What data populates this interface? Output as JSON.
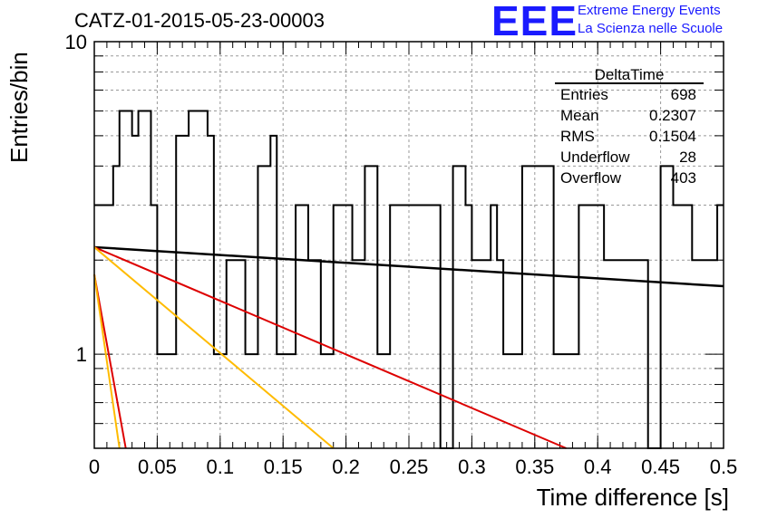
{
  "header": {
    "title": "CATZ-01-2015-05-23-00003",
    "logo_text": "EEE",
    "logo_line1": "Extreme Energy Events",
    "logo_line2": "La Scienza nelle Scuole"
  },
  "stats_box": {
    "name": "DeltaTime",
    "rows": [
      {
        "label": "Entries",
        "value": "698"
      },
      {
        "label": "Mean",
        "value": "0.2307"
      },
      {
        "label": "RMS",
        "value": "0.1504"
      },
      {
        "label": "Underflow",
        "value": "28"
      },
      {
        "label": "Overflow",
        "value": "403"
      }
    ]
  },
  "chart_data": {
    "type": "line",
    "xlabel": "Time difference [s]",
    "ylabel": "Entries/bin",
    "xlim": [
      0,
      0.5
    ],
    "ylim": [
      0.5,
      10
    ],
    "yscale": "log",
    "grid": true,
    "x_ticks": [
      "0",
      "0.05",
      "0.1",
      "0.15",
      "0.2",
      "0.25",
      "0.3",
      "0.35",
      "0.4",
      "0.45",
      "0.5"
    ],
    "y_ticks": [
      "1",
      "10"
    ],
    "histogram": {
      "bin_width": 0.005,
      "counts": [
        3,
        3,
        3,
        4,
        6,
        6,
        5,
        6,
        6,
        3,
        1,
        1,
        1,
        5,
        5,
        6,
        6,
        6,
        5,
        1,
        1,
        2,
        2,
        2,
        1,
        1,
        4,
        4,
        5,
        1,
        1,
        1,
        3,
        3,
        2,
        2,
        1,
        1,
        3,
        3,
        3,
        2,
        2,
        4,
        4,
        1,
        1,
        3,
        3,
        3,
        3,
        3,
        3,
        3,
        3,
        0,
        0,
        4,
        4,
        3,
        2,
        2,
        2,
        3,
        2,
        1,
        1,
        1,
        4,
        4,
        4,
        4,
        4,
        1,
        1,
        1,
        1,
        3,
        3,
        3,
        3,
        2,
        2,
        2,
        2,
        2,
        2,
        2,
        0,
        0,
        4,
        4,
        3,
        3,
        3,
        2,
        2,
        2,
        2,
        3
      ]
    },
    "colors": {
      "histogram": "#000000",
      "fit1": "#000000",
      "fit2": "#dd0000",
      "fit3": "#ffbb00",
      "fit4": "#dd0000"
    },
    "series": [
      {
        "color_key": "fit1",
        "x": [
          0,
          0.5
        ],
        "y": [
          2.2,
          1.65
        ]
      },
      {
        "color_key": "fit2",
        "x": [
          0,
          0.375
        ],
        "y": [
          2.2,
          0.5
        ]
      },
      {
        "color_key": "fit3",
        "x": [
          0,
          0.19
        ],
        "y": [
          2.2,
          0.5
        ]
      },
      {
        "color_key": "fit4",
        "x": [
          0,
          0.025
        ],
        "y": [
          1.8,
          0.5
        ]
      },
      {
        "color_key": "fit3",
        "x": [
          0,
          0.02
        ],
        "y": [
          1.8,
          0.5
        ]
      }
    ]
  }
}
